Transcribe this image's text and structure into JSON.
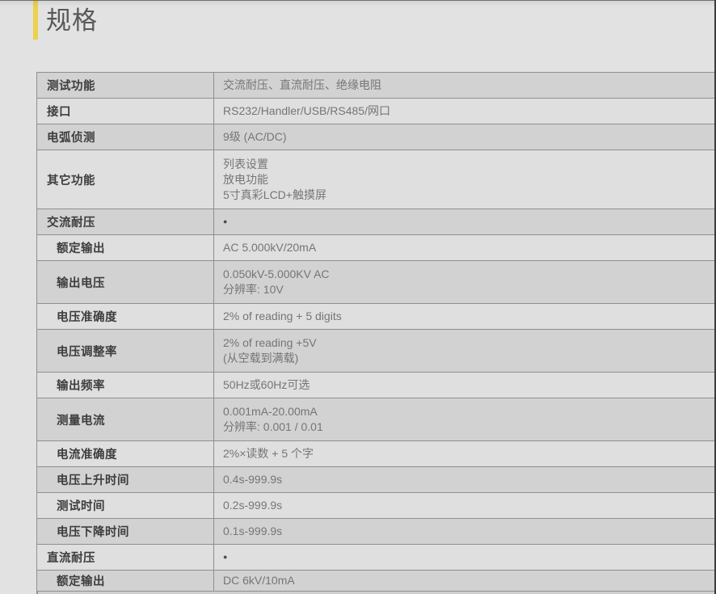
{
  "page": {
    "title": "规格",
    "accent_color": "#ecd14f"
  },
  "spec_table": {
    "columns": [
      "parameter",
      "value"
    ],
    "bullet_glyph": "●",
    "rows": [
      {
        "type": "section",
        "label": "测试功能",
        "value_lines": [
          "交流耐压、直流耐压、绝缘电阻"
        ]
      },
      {
        "type": "section",
        "label": "接口",
        "value_lines": [
          "RS232/Handler/USB/RS485/网口"
        ]
      },
      {
        "type": "section",
        "label": "电弧侦测",
        "value_lines": [
          "9级 (AC/DC)"
        ]
      },
      {
        "type": "section",
        "label": "其它功能",
        "value_lines": [
          "列表设置",
          "放电功能",
          "5寸真彩LCD+触摸屏"
        ]
      },
      {
        "type": "section",
        "label": "交流耐压",
        "value_lines": [
          "●"
        ]
      },
      {
        "type": "sub",
        "label": "额定输出",
        "value_lines": [
          "AC 5.000kV/20mA"
        ]
      },
      {
        "type": "sub",
        "label": "输出电压",
        "value_lines": [
          "0.050kV-5.000KV AC",
          "分辨率: 10V"
        ]
      },
      {
        "type": "sub",
        "label": "电压准确度",
        "value_lines": [
          "2% of reading + 5 digits"
        ]
      },
      {
        "type": "sub",
        "label": "电压调整率",
        "value_lines": [
          "2% of reading +5V",
          "(从空载到满载)"
        ]
      },
      {
        "type": "sub",
        "label": "输出频率",
        "value_lines": [
          "50Hz或60Hz可选"
        ]
      },
      {
        "type": "sub",
        "label": "测量电流",
        "value_lines": [
          "0.001mA-20.00mA",
          "分辨率: 0.001 / 0.01"
        ]
      },
      {
        "type": "sub",
        "label": "电流准确度",
        "value_lines": [
          "2%×读数 + 5 个字"
        ]
      },
      {
        "type": "sub",
        "label": "电压上升时间",
        "value_lines": [
          "0.4s-999.9s"
        ]
      },
      {
        "type": "sub",
        "label": "测试时间",
        "value_lines": [
          "0.2s-999.9s"
        ]
      },
      {
        "type": "sub",
        "label": "电压下降时间",
        "value_lines": [
          "0.1s-999.9s"
        ]
      },
      {
        "type": "section",
        "label": "直流耐压",
        "value_lines": [
          "●"
        ]
      },
      {
        "type": "sub",
        "label": "额定输出",
        "value_lines": [
          "DC 6kV/10mA"
        ]
      }
    ]
  }
}
